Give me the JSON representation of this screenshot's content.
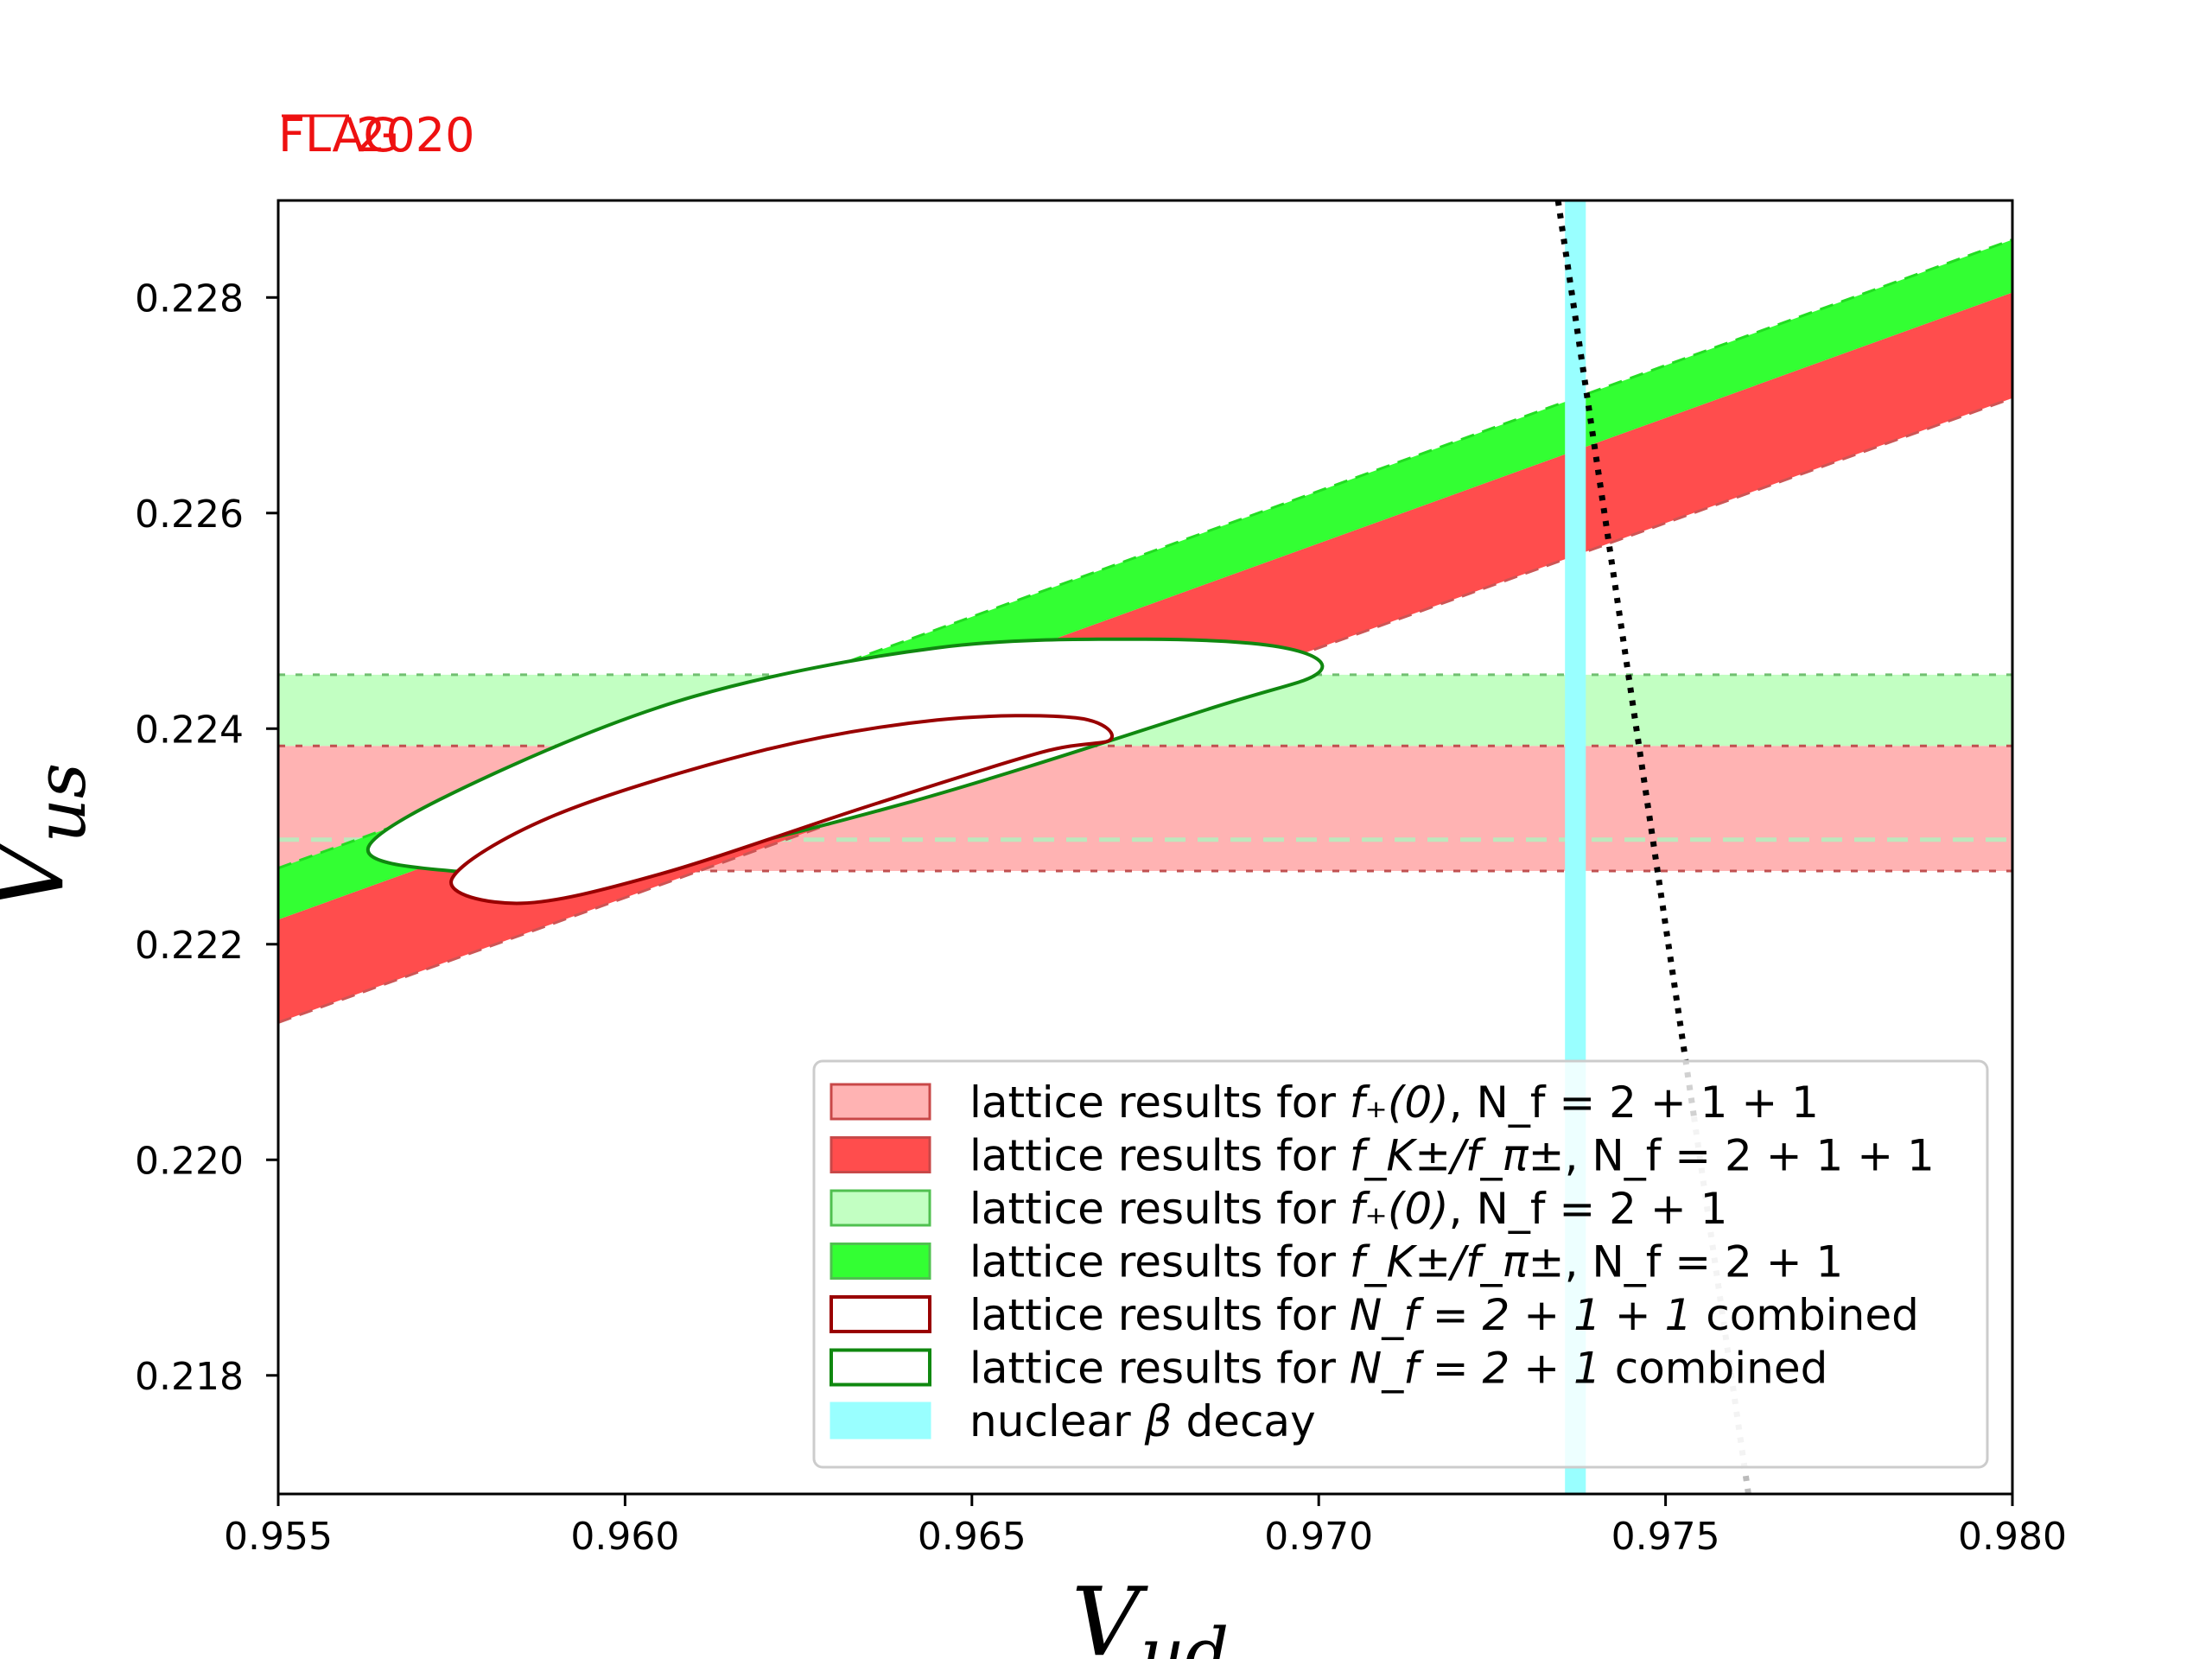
{
  "brand": {
    "prefix": "FLAG",
    "year": "2020",
    "color": "#ee1111"
  },
  "chart_data": {
    "type": "area",
    "title": "",
    "xlabel": {
      "base": "V",
      "sub": "ud"
    },
    "ylabel": {
      "base": "V",
      "sub": "us"
    },
    "xlim": [
      0.955,
      0.98
    ],
    "ylim": [
      0.2169,
      0.2289
    ],
    "xticks": [
      "0.955",
      "0.960",
      "0.965",
      "0.970",
      "0.975",
      "0.980"
    ],
    "yticks": [
      "0.218",
      "0.220",
      "0.222",
      "0.224",
      "0.226",
      "0.228"
    ],
    "grid": false,
    "legend_position": "lower-right",
    "colors": {
      "f0_211": "#ffb3b3",
      "fk_211": "#ff4d4d",
      "f0_21": "#c2ffc2",
      "fk_21": "#33ff33",
      "comb_211": "#990000",
      "comb_21": "#108810",
      "beta": "#99ffff",
      "unitarity": "#000000"
    },
    "series": [
      {
        "key": "f0_211",
        "kind": "hband",
        "y_low": 0.22268,
        "y_high": 0.22384
      },
      {
        "key": "f0_21",
        "kind": "hband",
        "y_low": 0.22384,
        "y_high": 0.2245,
        "center": 0.22297
      },
      {
        "key": "fk_211",
        "kind": "ratio_band",
        "r_low": 0.2317,
        "r_high": 0.2327
      },
      {
        "key": "fk_21",
        "kind": "ratio_band",
        "r_low": 0.2327,
        "r_high": 0.2332
      },
      {
        "key": "beta",
        "kind": "vband",
        "x_low": 0.97355,
        "x_high": 0.97385
      },
      {
        "key": "comb_211",
        "kind": "ellipse",
        "points": [
          [
            0.9575,
            0.2226
          ],
          [
            0.9585,
            0.22238
          ],
          [
            0.9605,
            0.22265
          ],
          [
            0.9635,
            0.22328
          ],
          [
            0.966,
            0.22378
          ],
          [
            0.967,
            0.2239
          ],
          [
            0.9665,
            0.2241
          ],
          [
            0.9645,
            0.22408
          ],
          [
            0.962,
            0.2238
          ],
          [
            0.959,
            0.2232
          ]
        ]
      },
      {
        "key": "comb_21",
        "kind": "ellipse",
        "points": [
          [
            0.9563,
            0.2229
          ],
          [
            0.9575,
            0.22268
          ],
          [
            0.96,
            0.2227
          ],
          [
            0.964,
            0.2233
          ],
          [
            0.9685,
            0.2242
          ],
          [
            0.97,
            0.22452
          ],
          [
            0.9695,
            0.22475
          ],
          [
            0.9675,
            0.22483
          ],
          [
            0.9645,
            0.22475
          ],
          [
            0.961,
            0.2243
          ],
          [
            0.958,
            0.22355
          ]
        ]
      },
      {
        "key": "unitarity",
        "kind": "unitarity_curve",
        "solid_to_y": 0.2204
      }
    ]
  },
  "legend": {
    "items": [
      {
        "key": "f0_211",
        "swatch": "fill",
        "prefix": "lattice results for ",
        "math": "f₊(0)",
        "suffix": ", N_f = 2 + 1 + 1"
      },
      {
        "key": "fk_211",
        "swatch": "fill",
        "prefix": "lattice results for ",
        "math": "f_K±/f_π±",
        "suffix": ", N_f = 2 + 1 + 1"
      },
      {
        "key": "f0_21",
        "swatch": "fill",
        "prefix": "lattice results for ",
        "math": "f₊(0)",
        "suffix": ", N_f = 2 + 1"
      },
      {
        "key": "fk_21",
        "swatch": "fill",
        "prefix": "lattice results for ",
        "math": "f_K±/f_π±",
        "suffix": ", N_f = 2 + 1"
      },
      {
        "key": "comb_211",
        "swatch": "outline",
        "prefix": "lattice results for ",
        "math": "N_f = 2 + 1 + 1",
        "suffix": " combined"
      },
      {
        "key": "comb_21",
        "swatch": "outline",
        "prefix": "lattice results for ",
        "math": "N_f = 2 + 1",
        "suffix": " combined"
      },
      {
        "key": "beta",
        "swatch": "fill",
        "prefix": "nuclear ",
        "math": "β",
        "suffix": " decay"
      }
    ]
  }
}
